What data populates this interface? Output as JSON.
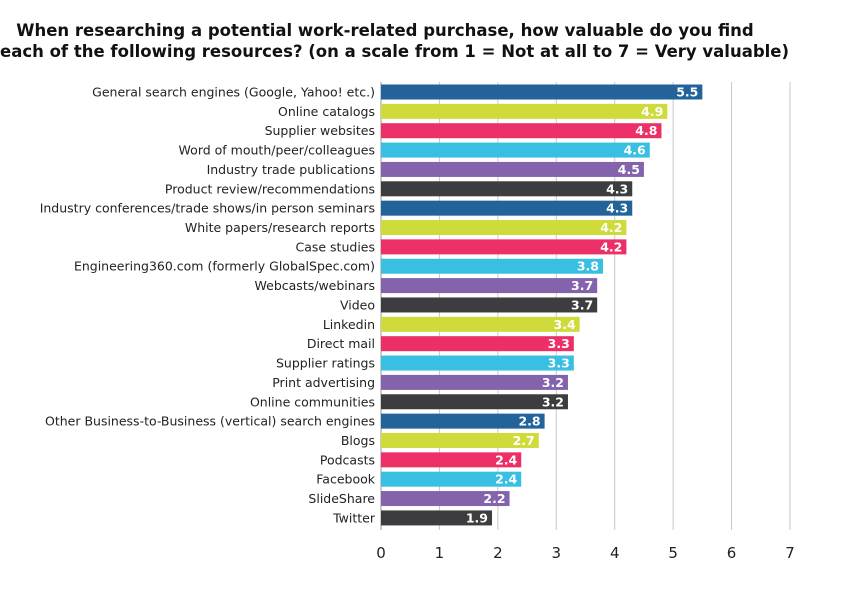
{
  "chart_data": {
    "type": "bar",
    "orientation": "horizontal",
    "title_lines": [
      "When researching a potential work-related purchase, how valuable do you find",
      "each of the following resources? (on a scale from 1 = Not at all to 7 = Very valuable)"
    ],
    "categories": [
      "General search engines (Google, Yahoo! etc.)",
      "Online catalogs",
      "Supplier websites",
      "Word of mouth/peer/colleagues",
      "Industry trade publications",
      "Product review/recommendations",
      "Industry conferences/trade shows/in person seminars",
      "White papers/research reports",
      "Case studies",
      "Engineering360.com (formerly GlobalSpec.com)",
      "Webcasts/webinars",
      "Video",
      "Linkedin",
      "Direct mail",
      "Supplier ratings",
      "Print advertising",
      "Online communities",
      "Other Business-to-Business (vertical) search engines",
      "Blogs",
      "Podcasts",
      "Facebook",
      "SlideShare",
      "Twitter"
    ],
    "values": [
      5.5,
      4.9,
      4.8,
      4.6,
      4.5,
      4.3,
      4.3,
      4.2,
      4.2,
      3.8,
      3.7,
      3.7,
      3.4,
      3.3,
      3.3,
      3.2,
      3.2,
      2.8,
      2.7,
      2.4,
      2.4,
      2.2,
      1.9
    ],
    "bar_colors": [
      "#22639a",
      "#cedb3a",
      "#ec2f66",
      "#38bfe2",
      "#8463ac",
      "#3d3d3f",
      "#22639a",
      "#cedb3a",
      "#ec2f66",
      "#38bfe2",
      "#8463ac",
      "#3d3d3f",
      "#cedb3a",
      "#ec2f66",
      "#38bfe2",
      "#8463ac",
      "#3d3d3f",
      "#22639a",
      "#cedb3a",
      "#ec2f66",
      "#38bfe2",
      "#8463ac",
      "#3d3d3f"
    ],
    "xlim": [
      0,
      7
    ],
    "xticks": [
      "0",
      "1",
      "2",
      "3",
      "4",
      "5",
      "6",
      "7"
    ],
    "grid": true,
    "xlabel": "",
    "ylabel": ""
  }
}
